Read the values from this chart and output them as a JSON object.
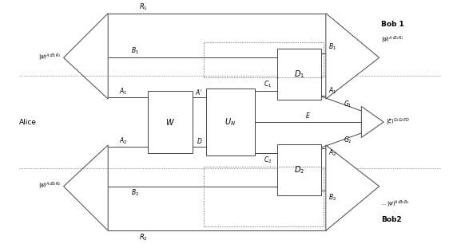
{
  "bg_color": "#ffffff",
  "lc": "#444444",
  "lw": 0.7,
  "fig_width": 5.82,
  "fig_height": 3.06,
  "dpi": 100,
  "xlim": [
    0,
    100
  ],
  "ylim": [
    0,
    55
  ]
}
